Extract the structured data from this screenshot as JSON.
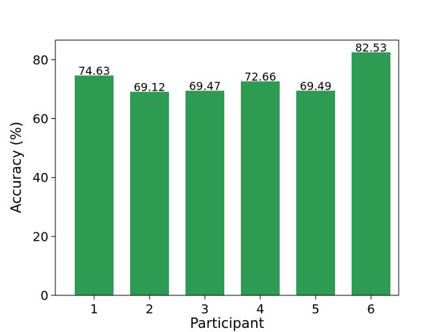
{
  "chart_data": {
    "type": "bar",
    "categories": [
      "1",
      "2",
      "3",
      "4",
      "5",
      "6"
    ],
    "values": [
      74.63,
      69.12,
      69.47,
      72.66,
      69.49,
      82.53
    ],
    "data_labels": [
      "74.63",
      "69.12",
      "69.47",
      "72.66",
      "69.49",
      "82.53"
    ],
    "title": "",
    "xlabel": "Participant",
    "ylabel": "Accuracy (%)",
    "ylim": [
      0,
      86.66
    ],
    "yticks": [
      0,
      20,
      40,
      60,
      80
    ],
    "ytick_labels": [
      "0",
      "20",
      "40",
      "60",
      "80"
    ],
    "grid": false,
    "bar_color": "#2e9b52"
  }
}
